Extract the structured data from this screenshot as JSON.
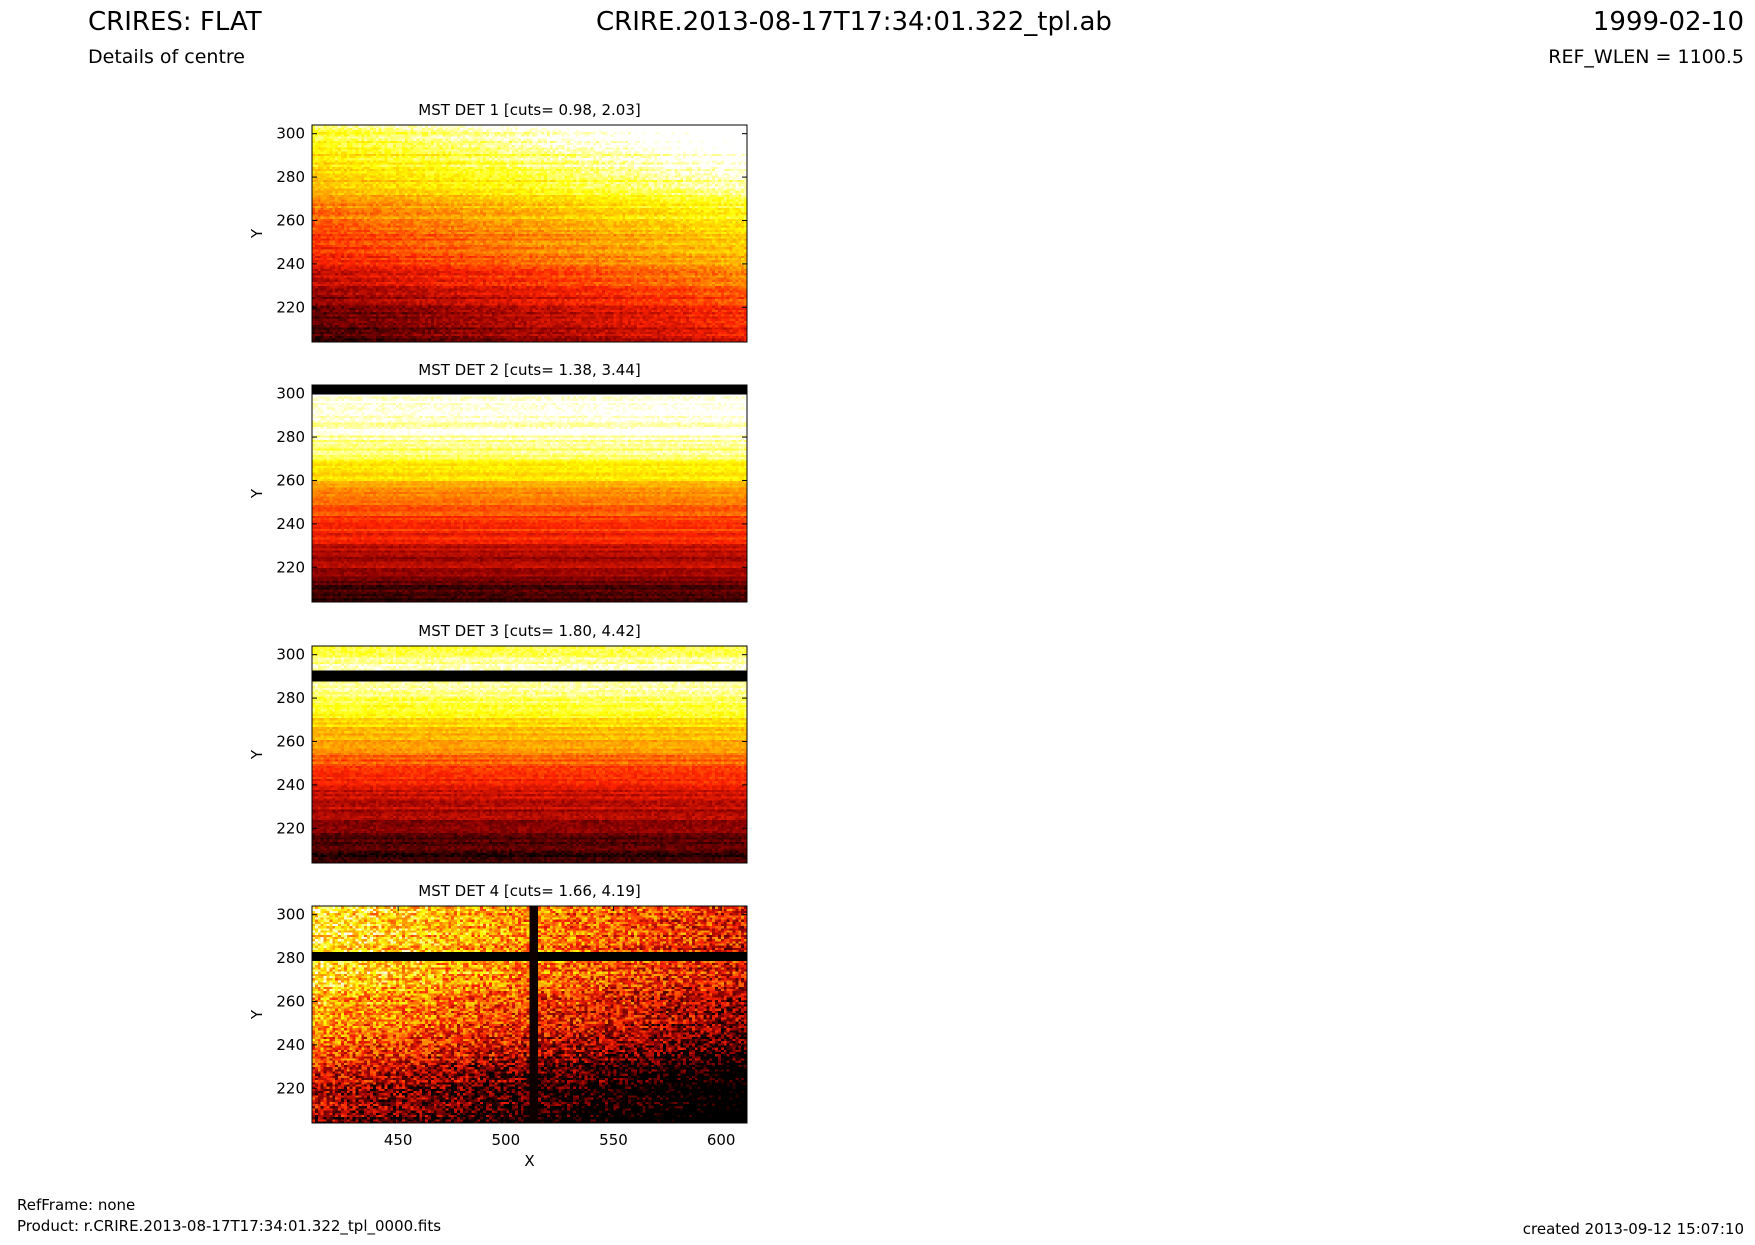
{
  "header": {
    "title_left": "CRIRES: FLAT",
    "subtitle_left": "Details of centre",
    "title_center": "CRIRE.2013-08-17T17:34:01.322_tpl.ab",
    "date_right": "1999-02-10",
    "ref_wlen": "REF_WLEN = 1100.5"
  },
  "footer": {
    "refframe": "RefFrame: none",
    "product": "Product: r.CRIRE.2013-08-17T17:34:01.322_tpl_0000.fits",
    "created": "created 2013-09-12 15:07:10"
  },
  "colormap": [
    "#000000",
    "#8b0000",
    "#ff2200",
    "#ff9900",
    "#ffff00",
    "#ffffff"
  ],
  "chart_data": [
    {
      "type": "heatmap",
      "title": "MST DET 1 [cuts= 0.98, 2.03]",
      "xlabel": "",
      "ylabel": "Y",
      "xlim": [
        410,
        612
      ],
      "ylim": [
        204,
        304
      ],
      "xticks": [],
      "yticks": [
        220,
        240,
        260,
        280,
        300
      ],
      "profile": [
        [
          204,
          0.05
        ],
        [
          215,
          0.12
        ],
        [
          225,
          0.2
        ],
        [
          235,
          0.3
        ],
        [
          245,
          0.4
        ],
        [
          255,
          0.45
        ],
        [
          265,
          0.55
        ],
        [
          272,
          0.62
        ],
        [
          280,
          0.7
        ],
        [
          290,
          0.75
        ],
        [
          300,
          0.82
        ],
        [
          304,
          0.85
        ]
      ],
      "x_gradient": 0.28,
      "noise": 0.06
    },
    {
      "type": "heatmap",
      "title": "MST DET 2 [cuts= 1.38, 3.44]",
      "xlabel": "",
      "ylabel": "Y",
      "xlim": [
        410,
        612
      ],
      "ylim": [
        204,
        304
      ],
      "xticks": [],
      "yticks": [
        220,
        240,
        260,
        280,
        300
      ],
      "profile": [
        [
          204,
          0.05
        ],
        [
          212,
          0.12
        ],
        [
          222,
          0.3
        ],
        [
          226,
          0.22
        ],
        [
          232,
          0.38
        ],
        [
          240,
          0.42
        ],
        [
          248,
          0.5
        ],
        [
          256,
          0.58
        ],
        [
          262,
          0.72
        ],
        [
          270,
          0.82
        ],
        [
          278,
          0.92
        ],
        [
          290,
          0.98
        ],
        [
          304,
          1.0
        ]
      ],
      "dark_rows": [
        [
          300,
          304
        ]
      ],
      "x_gradient": 0.03,
      "noise": 0.04
    },
    {
      "type": "heatmap",
      "title": "MST DET 3 [cuts= 1.80, 4.42]",
      "xlabel": "",
      "ylabel": "Y",
      "xlim": [
        410,
        612
      ],
      "ylim": [
        204,
        304
      ],
      "xticks": [],
      "yticks": [
        220,
        240,
        260,
        280,
        300
      ],
      "profile": [
        [
          204,
          0.05
        ],
        [
          215,
          0.12
        ],
        [
          225,
          0.22
        ],
        [
          235,
          0.3
        ],
        [
          245,
          0.42
        ],
        [
          252,
          0.5
        ],
        [
          260,
          0.62
        ],
        [
          268,
          0.72
        ],
        [
          276,
          0.82
        ],
        [
          284,
          0.88
        ],
        [
          292,
          0.98
        ],
        [
          298,
          0.9
        ],
        [
          304,
          0.86
        ]
      ],
      "dark_rows": [
        [
          288,
          293
        ]
      ],
      "x_gradient": 0.02,
      "noise": 0.05
    },
    {
      "type": "heatmap",
      "title": "MST DET 4 [cuts= 1.66, 4.19]",
      "xlabel": "X",
      "ylabel": "Y",
      "xlim": [
        410,
        612
      ],
      "ylim": [
        204,
        304
      ],
      "xticks": [
        450,
        500,
        550,
        600
      ],
      "yticks": [
        220,
        240,
        260,
        280,
        300
      ],
      "profile": [
        [
          204,
          0.2
        ],
        [
          220,
          0.32
        ],
        [
          235,
          0.45
        ],
        [
          250,
          0.6
        ],
        [
          265,
          0.72
        ],
        [
          275,
          0.8
        ],
        [
          285,
          0.78
        ],
        [
          295,
          0.8
        ],
        [
          304,
          0.82
        ]
      ],
      "dark_rows": [
        [
          279,
          283
        ]
      ],
      "x_gradient": -0.45,
      "noise": 0.22,
      "dark_column": 513
    }
  ]
}
